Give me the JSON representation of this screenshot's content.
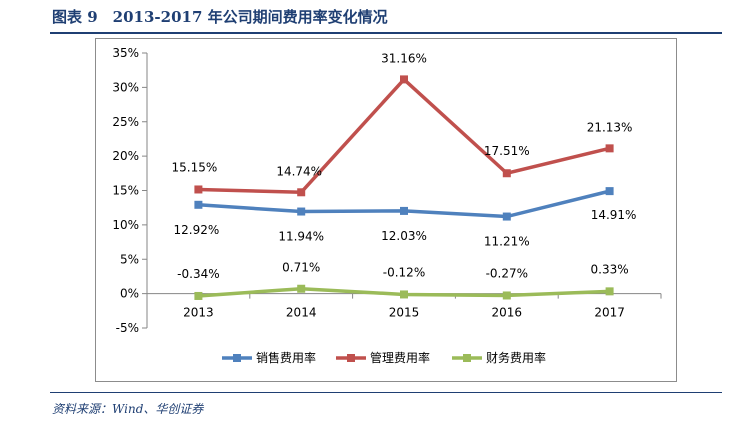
{
  "figure_title": "图表 9　2013-2017 年公司期间费用率变化情况",
  "source_note": "资料来源：Wind、华创证券",
  "colors": {
    "title": "#1f3f73",
    "sales": "#4f81bd",
    "admin": "#c0504d",
    "finance": "#9bbb59"
  },
  "chart_data": {
    "type": "line",
    "title": "",
    "xlabel": "",
    "ylabel": "",
    "categories": [
      "2013",
      "2014",
      "2015",
      "2016",
      "2017"
    ],
    "ylim": [
      -5,
      35
    ],
    "yticks": [
      -5,
      0,
      5,
      10,
      15,
      20,
      25,
      30,
      35
    ],
    "ytick_labels": [
      "-5%",
      "0%",
      "5%",
      "10%",
      "15%",
      "20%",
      "25%",
      "30%",
      "35%"
    ],
    "grid": false,
    "legend_position": "bottom",
    "series": [
      {
        "key": "sales",
        "name": "销售费用率",
        "color": "#4f81bd",
        "values": [
          12.92,
          11.94,
          12.03,
          11.21,
          14.91
        ],
        "labels": [
          "12.92%",
          "11.94%",
          "12.03%",
          "11.21%",
          "14.91%"
        ]
      },
      {
        "key": "admin",
        "name": "管理费用率",
        "color": "#c0504d",
        "values": [
          15.15,
          14.74,
          31.16,
          17.51,
          21.13
        ],
        "labels": [
          "15.15%",
          "14.74%",
          "31.16%",
          "17.51%",
          "21.13%"
        ]
      },
      {
        "key": "finance",
        "name": "财务费用率",
        "color": "#9bbb59",
        "values": [
          -0.34,
          0.71,
          -0.12,
          -0.27,
          0.33
        ],
        "labels": [
          "-0.34%",
          "0.71%",
          "-0.12%",
          "-0.27%",
          "0.33%"
        ]
      }
    ]
  }
}
